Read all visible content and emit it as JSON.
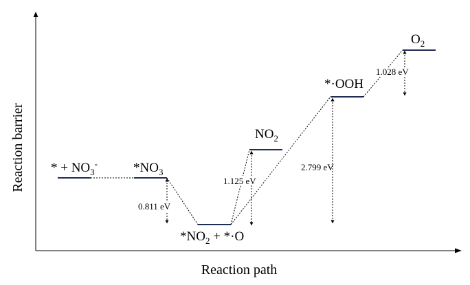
{
  "axes": {
    "x_title": "Reaction path",
    "y_title": "Reaction barrier"
  },
  "colors": {
    "level": "#1f2d55",
    "line": "#000000"
  },
  "states": [
    {
      "id": "start",
      "main": "* + NO",
      "sub": "3",
      "sup": "-"
    },
    {
      "id": "no3",
      "main": "*NO",
      "sub": "3"
    },
    {
      "id": "no2o",
      "main": "*NO",
      "sub": "2",
      "tail": " + *·O"
    },
    {
      "id": "no2",
      "main": "NO",
      "sub": "2"
    },
    {
      "id": "ooh",
      "main": "*·OOH"
    },
    {
      "id": "o2",
      "main": "O",
      "sub": "2"
    }
  ],
  "energies": {
    "step1": "0.811 eV",
    "step2": "1.125 eV",
    "step3": "2.799 eV",
    "step4": "1.028 eV"
  }
}
